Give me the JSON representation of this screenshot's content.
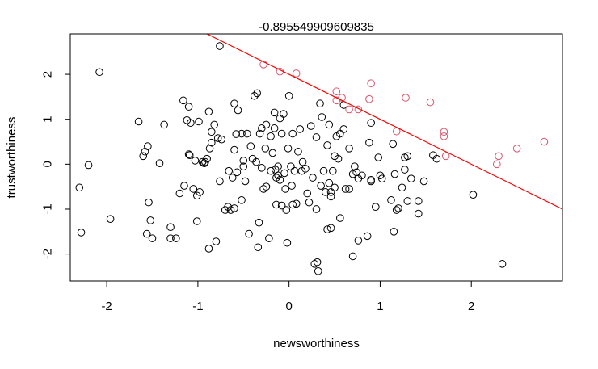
{
  "chart_data": {
    "type": "scatter",
    "title": "-0.895549909609835",
    "xlabel": "newsworthiness",
    "ylabel": "trustworthiness",
    "xlim": [
      -2.4,
      3.0
    ],
    "ylim": [
      -2.6,
      2.9
    ],
    "xticks": [
      -2,
      -1,
      0,
      1,
      2
    ],
    "yticks": [
      -2,
      -1,
      0,
      1,
      2
    ],
    "xtick_labels": [
      "-2",
      "-1",
      "0",
      "1",
      "2"
    ],
    "ytick_labels": [
      "-2",
      "-1",
      "0",
      "1",
      "2"
    ],
    "grid": false,
    "legend": "none",
    "colors": {
      "unselected": "#000000",
      "selected": "#df536b",
      "line": "#ff0000"
    },
    "selection_line": {
      "intercept": 2.0,
      "slope": -1.0
    },
    "series": [
      {
        "color": "#000000",
        "points": [
          [
            -2.3,
            -0.52
          ],
          [
            -2.28,
            -1.52
          ],
          [
            -2.2,
            -0.02
          ],
          [
            -2.08,
            2.05
          ],
          [
            -1.96,
            -1.22
          ],
          [
            -1.65,
            0.95
          ],
          [
            -1.6,
            0.18
          ],
          [
            -1.58,
            0.28
          ],
          [
            -1.56,
            -1.55
          ],
          [
            -1.55,
            0.4
          ],
          [
            -1.54,
            -0.85
          ],
          [
            -1.52,
            -1.25
          ],
          [
            -1.5,
            -1.65
          ],
          [
            -1.42,
            0.02
          ],
          [
            -1.37,
            0.88
          ],
          [
            -1.3,
            -1.65
          ],
          [
            -1.3,
            -1.4
          ],
          [
            -1.24,
            -1.65
          ],
          [
            -1.2,
            -0.65
          ],
          [
            -1.16,
            1.42
          ],
          [
            -1.15,
            -0.48
          ],
          [
            -1.12,
            0.98
          ],
          [
            -1.1,
            1.28
          ],
          [
            -1.1,
            0.22
          ],
          [
            -1.09,
            0.2
          ],
          [
            -1.08,
            0.92
          ],
          [
            -1.05,
            -0.55
          ],
          [
            -1.03,
            0.08
          ],
          [
            -1.01,
            -1.27
          ],
          [
            -1.01,
            -0.7
          ],
          [
            -0.99,
            0.95
          ],
          [
            -0.98,
            -0.62
          ],
          [
            -0.95,
            0.05
          ],
          [
            -0.93,
            0.02
          ],
          [
            -0.92,
            0.05
          ],
          [
            -0.9,
            0.12
          ],
          [
            -0.88,
            -1.88
          ],
          [
            -0.88,
            1.17
          ],
          [
            -0.87,
            0.35
          ],
          [
            -0.85,
            0.48
          ],
          [
            -0.85,
            0.72
          ],
          [
            -0.82,
            0.88
          ],
          [
            -0.8,
            -1.72
          ],
          [
            -0.78,
            0.58
          ],
          [
            -0.76,
            -0.38
          ],
          [
            -0.76,
            2.63
          ],
          [
            -0.74,
            0.55
          ],
          [
            -0.7,
            -1.02
          ],
          [
            -0.67,
            -0.95
          ],
          [
            -0.66,
            -0.15
          ],
          [
            -0.64,
            -1.02
          ],
          [
            -0.62,
            -0.3
          ],
          [
            -0.6,
            -0.98
          ],
          [
            -0.6,
            1.35
          ],
          [
            -0.6,
            0.32
          ],
          [
            -0.58,
            0.67
          ],
          [
            -0.57,
            -0.18
          ],
          [
            -0.56,
            1.2
          ],
          [
            -0.52,
            -0.8
          ],
          [
            -0.52,
            0.68
          ],
          [
            -0.5,
            0.08
          ],
          [
            -0.5,
            -0.05
          ],
          [
            -0.48,
            -0.38
          ],
          [
            -0.46,
            0.68
          ],
          [
            -0.44,
            -1.55
          ],
          [
            -0.42,
            0.4
          ],
          [
            -0.4,
            0.12
          ],
          [
            -0.38,
            1.52
          ],
          [
            -0.36,
            0.05
          ],
          [
            -0.35,
            1.58
          ],
          [
            -0.34,
            -1.85
          ],
          [
            -0.33,
            -1.3
          ],
          [
            -0.32,
            0.68
          ],
          [
            -0.3,
            0.8
          ],
          [
            -0.3,
            -0.08
          ],
          [
            -0.28,
            -0.55
          ],
          [
            -0.26,
            0.35
          ],
          [
            -0.25,
            -0.5
          ],
          [
            -0.25,
            0.88
          ],
          [
            -0.22,
            -1.65
          ],
          [
            -0.2,
            -0.15
          ],
          [
            -0.2,
            0.62
          ],
          [
            -0.18,
            0.25
          ],
          [
            -0.16,
            0.8
          ],
          [
            -0.16,
            1.15
          ],
          [
            -0.15,
            -0.12
          ],
          [
            -0.14,
            -0.9
          ],
          [
            -0.14,
            -0.3
          ],
          [
            -0.12,
            -0.05
          ],
          [
            -0.12,
            -0.25
          ],
          [
            -0.1,
            1.02
          ],
          [
            -0.1,
            -0.35
          ],
          [
            -0.08,
            0.68
          ],
          [
            -0.08,
            -0.92
          ],
          [
            -0.06,
            1.12
          ],
          [
            -0.05,
            -0.2
          ],
          [
            -0.04,
            -0.55
          ],
          [
            -0.03,
            -1.02
          ],
          [
            -0.02,
            -1.75
          ],
          [
            -0.01,
            0.35
          ],
          [
            0.0,
            1.52
          ],
          [
            0.02,
            -0.05
          ],
          [
            0.03,
            -0.48
          ],
          [
            0.04,
            -0.9
          ],
          [
            0.04,
            0.68
          ],
          [
            0.06,
            -0.15
          ],
          [
            0.08,
            -0.88
          ],
          [
            0.1,
            0.28
          ],
          [
            0.12,
            0.78
          ],
          [
            0.14,
            -0.15
          ],
          [
            0.15,
            0.05
          ],
          [
            0.18,
            -0.1
          ],
          [
            0.2,
            -0.65
          ],
          [
            0.22,
            -0.85
          ],
          [
            0.24,
            0.85
          ],
          [
            0.26,
            -0.3
          ],
          [
            0.28,
            -2.22
          ],
          [
            0.3,
            -1.0
          ],
          [
            0.3,
            0.6
          ],
          [
            0.31,
            -2.18
          ],
          [
            0.32,
            -2.38
          ],
          [
            0.34,
            1.35
          ],
          [
            0.35,
            -0.48
          ],
          [
            0.36,
            1.05
          ],
          [
            0.38,
            -0.15
          ],
          [
            0.4,
            -0.62
          ],
          [
            0.42,
            0.42
          ],
          [
            0.42,
            -1.45
          ],
          [
            0.44,
            0.88
          ],
          [
            0.44,
            -0.42
          ],
          [
            0.46,
            -0.72
          ],
          [
            0.46,
            -0.62
          ],
          [
            0.46,
            -1.42
          ],
          [
            0.48,
            -0.15
          ],
          [
            0.5,
            -0.52
          ],
          [
            0.5,
            0.18
          ],
          [
            0.52,
            0.62
          ],
          [
            0.54,
            0.12
          ],
          [
            0.56,
            -1.2
          ],
          [
            0.56,
            0.68
          ],
          [
            0.6,
            1.32
          ],
          [
            0.6,
            0.78
          ],
          [
            0.62,
            -0.55
          ],
          [
            0.66,
            -0.55
          ],
          [
            0.66,
            0.35
          ],
          [
            0.7,
            -0.22
          ],
          [
            0.7,
            -2.05
          ],
          [
            0.72,
            -0.05
          ],
          [
            0.74,
            -0.18
          ],
          [
            0.76,
            -0.32
          ],
          [
            0.76,
            -1.7
          ],
          [
            0.8,
            -0.25
          ],
          [
            0.86,
            -1.6
          ],
          [
            0.88,
            0.48
          ],
          [
            0.9,
            -0.35
          ],
          [
            0.9,
            -0.38
          ],
          [
            0.9,
            0.92
          ],
          [
            0.95,
            -0.95
          ],
          [
            0.98,
            0.15
          ],
          [
            1.0,
            -0.25
          ],
          [
            1.02,
            -0.32
          ],
          [
            1.12,
            -0.8
          ],
          [
            1.14,
            0.45
          ],
          [
            1.15,
            -1.5
          ],
          [
            1.16,
            -0.22
          ],
          [
            1.18,
            -1.02
          ],
          [
            1.2,
            -0.98
          ],
          [
            1.24,
            -0.52
          ],
          [
            1.27,
            -0.12
          ],
          [
            1.27,
            0.15
          ],
          [
            1.3,
            0.18
          ],
          [
            1.3,
            -0.82
          ],
          [
            1.34,
            -0.32
          ],
          [
            1.42,
            -0.82
          ],
          [
            1.42,
            -1.1
          ],
          [
            1.48,
            -0.38
          ],
          [
            1.58,
            0.2
          ],
          [
            1.62,
            0.12
          ],
          [
            2.02,
            -0.68
          ],
          [
            2.34,
            -2.22
          ]
        ]
      },
      {
        "color": "#df536b",
        "points": [
          [
            -0.28,
            2.22
          ],
          [
            -0.1,
            2.06
          ],
          [
            0.08,
            2.02
          ],
          [
            0.52,
            1.62
          ],
          [
            0.52,
            1.42
          ],
          [
            0.58,
            1.48
          ],
          [
            0.66,
            1.22
          ],
          [
            0.76,
            1.22
          ],
          [
            0.88,
            1.45
          ],
          [
            0.9,
            1.8
          ],
          [
            1.18,
            0.73
          ],
          [
            1.28,
            1.48
          ],
          [
            1.55,
            1.38
          ],
          [
            1.7,
            0.72
          ],
          [
            1.7,
            0.62
          ],
          [
            1.72,
            0.18
          ],
          [
            2.28,
            0.0
          ],
          [
            2.3,
            0.18
          ],
          [
            2.5,
            0.35
          ],
          [
            2.8,
            0.5
          ]
        ]
      }
    ]
  }
}
